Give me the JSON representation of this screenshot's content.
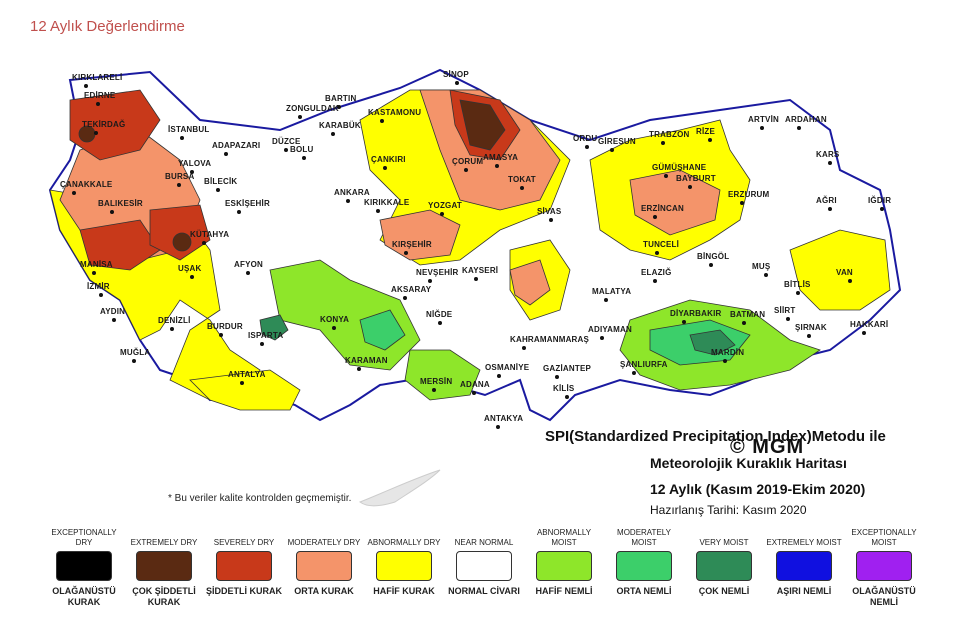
{
  "header": {
    "title": "12 Aylık Değerlendirme"
  },
  "map": {
    "watermark": "© MGM",
    "title_lines": [
      "SPI(Standardized Precipitation Index)Metodu ile",
      "Meteorolojik Kuraklık Haritası",
      "12 Aylık (Kasım 2019-Ekim 2020)",
      "Hazırlanış Tarihi: Kasım 2020"
    ],
    "footnote": "* Bu veriler kalite kontrolden geçmemiştir.",
    "cities": [
      {
        "name": "SİNOP"
      },
      {
        "name": "KIRKLARELİ"
      },
      {
        "name": "EDİRNE"
      },
      {
        "name": "TEKİRDAĞ"
      },
      {
        "name": "İSTANBUL"
      },
      {
        "name": "BARTIN"
      },
      {
        "name": "ZONGULDAK"
      },
      {
        "name": "KARABÜK"
      },
      {
        "name": "KASTAMONU"
      },
      {
        "name": "DÜZCE"
      },
      {
        "name": "ADAPAZARI"
      },
      {
        "name": "BOLU"
      },
      {
        "name": "YALOVA"
      },
      {
        "name": "BURSA"
      },
      {
        "name": "BİLECİK"
      },
      {
        "name": "ÇANKIRI"
      },
      {
        "name": "ÇORUM"
      },
      {
        "name": "AMASYA"
      },
      {
        "name": "ORDU"
      },
      {
        "name": "GİRESUN"
      },
      {
        "name": "TRABZON"
      },
      {
        "name": "RİZE"
      },
      {
        "name": "ARTVİN"
      },
      {
        "name": "ARDAHAN"
      },
      {
        "name": "KARS"
      },
      {
        "name": "GÜMÜŞHANE"
      },
      {
        "name": "BAYBURT"
      },
      {
        "name": "ERZURUM"
      },
      {
        "name": "AĞRI"
      },
      {
        "name": "IĞDIR"
      },
      {
        "name": "TOKAT"
      },
      {
        "name": "ÇANAKKALE"
      },
      {
        "name": "BALIKESİR"
      },
      {
        "name": "ESKİŞEHİR"
      },
      {
        "name": "ANKARA"
      },
      {
        "name": "KIRIKKALE"
      },
      {
        "name": "YOZGAT"
      },
      {
        "name": "SİVAS"
      },
      {
        "name": "ERZİNCAN"
      },
      {
        "name": "KÜTAHYA"
      },
      {
        "name": "KIRŞEHİR"
      },
      {
        "name": "TUNCELİ"
      },
      {
        "name": "BİNGÖL"
      },
      {
        "name": "MUŞ"
      },
      {
        "name": "VAN"
      },
      {
        "name": "BİTLİS"
      },
      {
        "name": "MANİSA"
      },
      {
        "name": "UŞAK"
      },
      {
        "name": "AFYON"
      },
      {
        "name": "NEVŞEHİR"
      },
      {
        "name": "KAYSERİ"
      },
      {
        "name": "ELAZIĞ"
      },
      {
        "name": "MALATYA"
      },
      {
        "name": "İZMİR"
      },
      {
        "name": "AYDIN"
      },
      {
        "name": "DENİZLİ"
      },
      {
        "name": "AKSARAY"
      },
      {
        "name": "KONYA"
      },
      {
        "name": "NİĞDE"
      },
      {
        "name": "SİİRT"
      },
      {
        "name": "ŞIRNAK"
      },
      {
        "name": "HAKKARİ"
      },
      {
        "name": "BATMAN"
      },
      {
        "name": "DİYARBAKIR"
      },
      {
        "name": "MUĞLA"
      },
      {
        "name": "BURDUR"
      },
      {
        "name": "ISPARTA"
      },
      {
        "name": "KARAMAN"
      },
      {
        "name": "KAHRAMANMARAŞ"
      },
      {
        "name": "ADIYAMAN"
      },
      {
        "name": "MARDİN"
      },
      {
        "name": "ANTALYA"
      },
      {
        "name": "MERSİN"
      },
      {
        "name": "ADANA"
      },
      {
        "name": "OSMANİYE"
      },
      {
        "name": "GAZİANTEP"
      },
      {
        "name": "ŞANLIURFA"
      },
      {
        "name": "KİLİS"
      },
      {
        "name": "ANTAKYA"
      }
    ]
  },
  "legend": [
    {
      "en": "EXCEPTIONALLY DRY",
      "color": "#000000",
      "tr": "OLAĞANÜSTÜ KURAK"
    },
    {
      "en": "EXTREMELY DRY",
      "color": "#5a2a12",
      "tr": "ÇOK ŞİDDETLİ KURAK"
    },
    {
      "en": "SEVERELY DRY",
      "color": "#c8391a",
      "tr": "ŞİDDETLİ KURAK"
    },
    {
      "en": "MODERATELY DRY",
      "color": "#f4946a",
      "tr": "ORTA KURAK"
    },
    {
      "en": "ABNORMALLY DRY",
      "color": "#ffff00",
      "tr": "HAFİF KURAK"
    },
    {
      "en": "NEAR NORMAL",
      "color": "#ffffff",
      "tr": "NORMAL CİVARI"
    },
    {
      "en": "ABNORMALLY MOIST",
      "color": "#8ee62a",
      "tr": "HAFİF NEMLİ"
    },
    {
      "en": "MODERATELY MOIST",
      "color": "#3ccf6a",
      "tr": "ORTA NEMLİ"
    },
    {
      "en": "VERY MOIST",
      "color": "#2e8b57",
      "tr": "ÇOK NEMLİ"
    },
    {
      "en": "EXTREMELY MOIST",
      "color": "#1010e0",
      "tr": "AŞIRI NEMLİ"
    },
    {
      "en": "EXCEPTIONALLY MOIST",
      "color": "#a020f0",
      "tr": "OLAĞANÜSTÜ NEMLİ"
    }
  ]
}
